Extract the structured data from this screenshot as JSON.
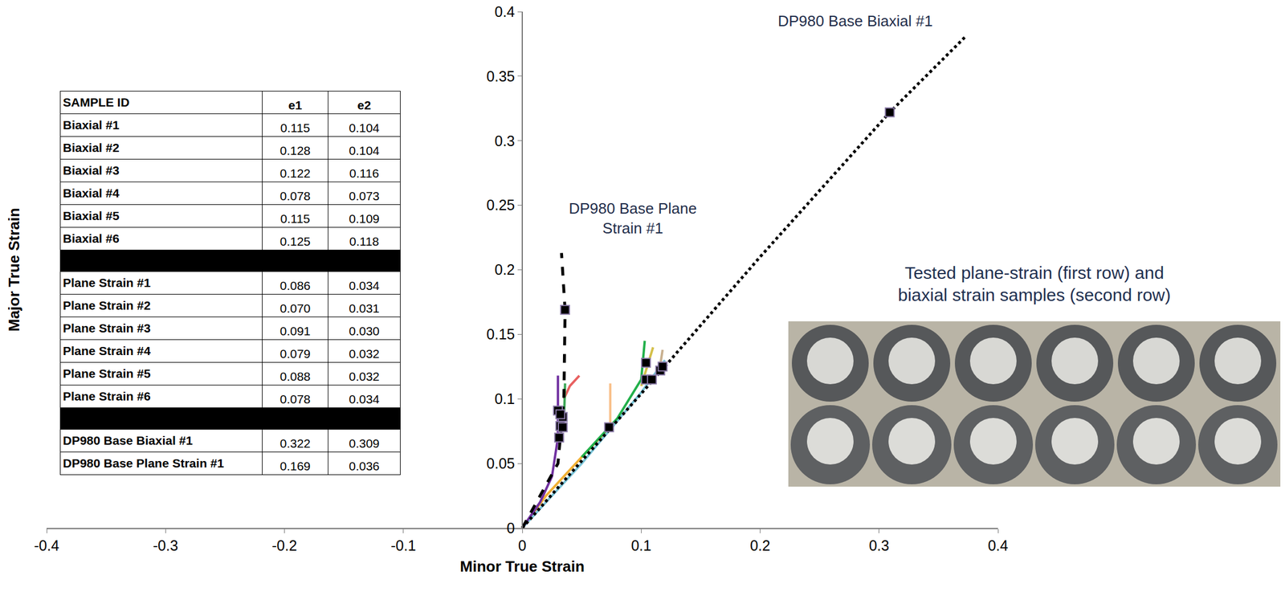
{
  "chart_data": {
    "type": "scatter",
    "x_label": "Minor True Strain",
    "y_label": "Major True Strain",
    "xlim": [
      -0.4,
      0.4
    ],
    "xticks": [
      -0.4,
      -0.3,
      -0.2,
      -0.1,
      0,
      0.1,
      0.2,
      0.3,
      0.4
    ],
    "ylim": [
      0,
      0.4
    ],
    "yticks": [
      0,
      0.05,
      0.1,
      0.15,
      0.2,
      0.25,
      0.3,
      0.35,
      0.4
    ],
    "grid": false,
    "marker": "square",
    "series": [
      {
        "color": "#f2b134",
        "line_style": "solid",
        "x": [
          0,
          0.02,
          0.05,
          0.074
        ],
        "y": [
          0,
          0.025,
          0.055,
          0.078
        ]
      },
      {
        "color": "#f8c08a",
        "line_style": "solid",
        "x": [
          0.074,
          0.074
        ],
        "y": [
          0.078,
          0.112
        ]
      },
      {
        "color": "#7ac4d8",
        "line_style": "solid",
        "x": [
          0,
          0.05,
          0.1,
          0.12
        ],
        "y": [
          0,
          0.05,
          0.105,
          0.13
        ]
      },
      {
        "color": "#22b04b",
        "line_style": "solid",
        "x": [
          0.05,
          0.08,
          0.1,
          0.103
        ],
        "y": [
          0.055,
          0.085,
          0.115,
          0.145
        ]
      },
      {
        "color": "#d4c04a",
        "line_style": "solid",
        "x": [
          0.1,
          0.11
        ],
        "y": [
          0.11,
          0.14
        ]
      },
      {
        "color": "#c8b090",
        "line_style": "solid",
        "x": [
          0.115,
          0.118
        ],
        "y": [
          0.12,
          0.138
        ]
      },
      {
        "color": "#7030a0",
        "line_style": "solid",
        "x": [
          0,
          0.015,
          0.025,
          0.03,
          0.03
        ],
        "y": [
          0,
          0.02,
          0.04,
          0.07,
          0.118
        ]
      },
      {
        "color": "#e86060",
        "line_style": "solid",
        "x": [
          0.035,
          0.04,
          0.048
        ],
        "y": [
          0.1,
          0.11,
          0.118
        ]
      },
      {
        "color": "#3aa655",
        "line_style": "solid",
        "x": [
          0.035,
          0.036
        ],
        "y": [
          0.08,
          0.112
        ]
      },
      {
        "color": "#000000",
        "line_style": "dotted",
        "x": [
          0,
          0.1,
          0.2,
          0.309,
          0.372
        ],
        "y": [
          0,
          0.104,
          0.21,
          0.322,
          0.38
        ]
      },
      {
        "color": "#000000",
        "line_style": "dashed",
        "x": [
          0,
          0.03,
          0.035,
          0.036,
          0.033
        ],
        "y": [
          0,
          0.05,
          0.1,
          0.169,
          0.213
        ]
      }
    ],
    "annotations": [
      {
        "text": "DP980 Base Biaxial #1",
        "x": 0.28,
        "y": 0.393
      },
      {
        "text": "DP980 Base Plane Strain #1",
        "x": 0.093,
        "y": 0.24
      }
    ]
  },
  "table": {
    "header": [
      "SAMPLE ID",
      "e1",
      "e2"
    ],
    "groups": [
      [
        [
          "Biaxial #1",
          "0.115",
          "0.104"
        ],
        [
          "Biaxial #2",
          "0.128",
          "0.104"
        ],
        [
          "Biaxial #3",
          "0.122",
          "0.116"
        ],
        [
          "Biaxial #4",
          "0.078",
          "0.073"
        ],
        [
          "Biaxial #5",
          "0.115",
          "0.109"
        ],
        [
          "Biaxial #6",
          "0.125",
          "0.118"
        ]
      ],
      [
        [
          "Plane Strain #1",
          "0.086",
          "0.034"
        ],
        [
          "Plane Strain #2",
          "0.070",
          "0.031"
        ],
        [
          "Plane Strain #3",
          "0.091",
          "0.030"
        ],
        [
          "Plane Strain #4",
          "0.079",
          "0.032"
        ],
        [
          "Plane Strain #5",
          "0.088",
          "0.032"
        ],
        [
          "Plane Strain #6",
          "0.078",
          "0.034"
        ]
      ],
      [
        [
          "DP980 Base Biaxial #1",
          "0.322",
          "0.309"
        ],
        [
          "DP980 Base Plane Strain #1",
          "0.169",
          "0.036"
        ]
      ]
    ]
  },
  "caption": "Tested plane-strain (first row) and biaxial strain samples (second row)"
}
